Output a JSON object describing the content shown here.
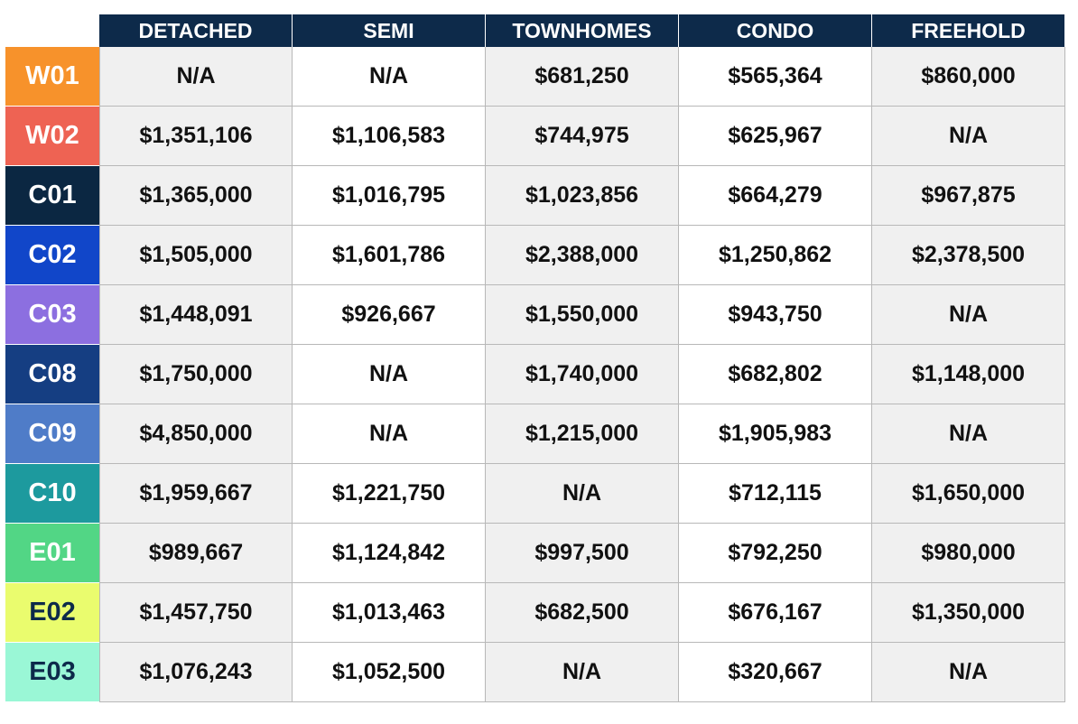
{
  "headers": [
    "DETACHED",
    "SEMI",
    "TOWNHOMES",
    "CONDO",
    "FREEHOLD"
  ],
  "rows": [
    {
      "label": "W01",
      "color": "#f7922b",
      "text_color": "#ffffff",
      "values": [
        "N/A",
        "N/A",
        "$681,250",
        "$565,364",
        "$860,000"
      ]
    },
    {
      "label": "W02",
      "color": "#ee6353",
      "text_color": "#ffffff",
      "values": [
        "$1,351,106",
        "$1,106,583",
        "$744,975",
        "$625,967",
        "N/A"
      ]
    },
    {
      "label": "C01",
      "color": "#0b2742",
      "text_color": "#ffffff",
      "values": [
        "$1,365,000",
        "$1,016,795",
        "$1,023,856",
        "$664,279",
        "$967,875"
      ]
    },
    {
      "label": "C02",
      "color": "#1146c9",
      "text_color": "#ffffff",
      "values": [
        "$1,505,000",
        "$1,601,786",
        "$2,388,000",
        "$1,250,862",
        "$2,378,500"
      ]
    },
    {
      "label": "C03",
      "color": "#8c6fe0",
      "text_color": "#ffffff",
      "values": [
        "$1,448,091",
        "$926,667",
        "$1,550,000",
        "$943,750",
        "N/A"
      ]
    },
    {
      "label": "C08",
      "color": "#153e82",
      "text_color": "#ffffff",
      "values": [
        "$1,750,000",
        "N/A",
        "$1,740,000",
        "$682,802",
        "$1,148,000"
      ]
    },
    {
      "label": "C09",
      "color": "#4f7cc8",
      "text_color": "#ffffff",
      "values": [
        "$4,850,000",
        "N/A",
        "$1,215,000",
        "$1,905,983",
        "N/A"
      ]
    },
    {
      "label": "C10",
      "color": "#1d9a9e",
      "text_color": "#ffffff",
      "values": [
        "$1,959,667",
        "$1,221,750",
        "N/A",
        "$712,115",
        "$1,650,000"
      ]
    },
    {
      "label": "E01",
      "color": "#52d685",
      "text_color": "#ffffff",
      "values": [
        "$989,667",
        "$1,124,842",
        "$997,500",
        "$792,250",
        "$980,000"
      ]
    },
    {
      "label": "E02",
      "color": "#eafc6e",
      "text_color": "#0d2a4a",
      "values": [
        "$1,457,750",
        "$1,013,463",
        "$682,500",
        "$676,167",
        "$1,350,000"
      ]
    },
    {
      "label": "E03",
      "color": "#9af7d6",
      "text_color": "#0d2a4a",
      "values": [
        "$1,076,243",
        "$1,052,500",
        "N/A",
        "$320,667",
        "N/A"
      ]
    }
  ],
  "colors": {
    "header_bg": "#0d2a4a",
    "shade_even": "#f0f0f0",
    "shade_odd": "#ffffff"
  }
}
